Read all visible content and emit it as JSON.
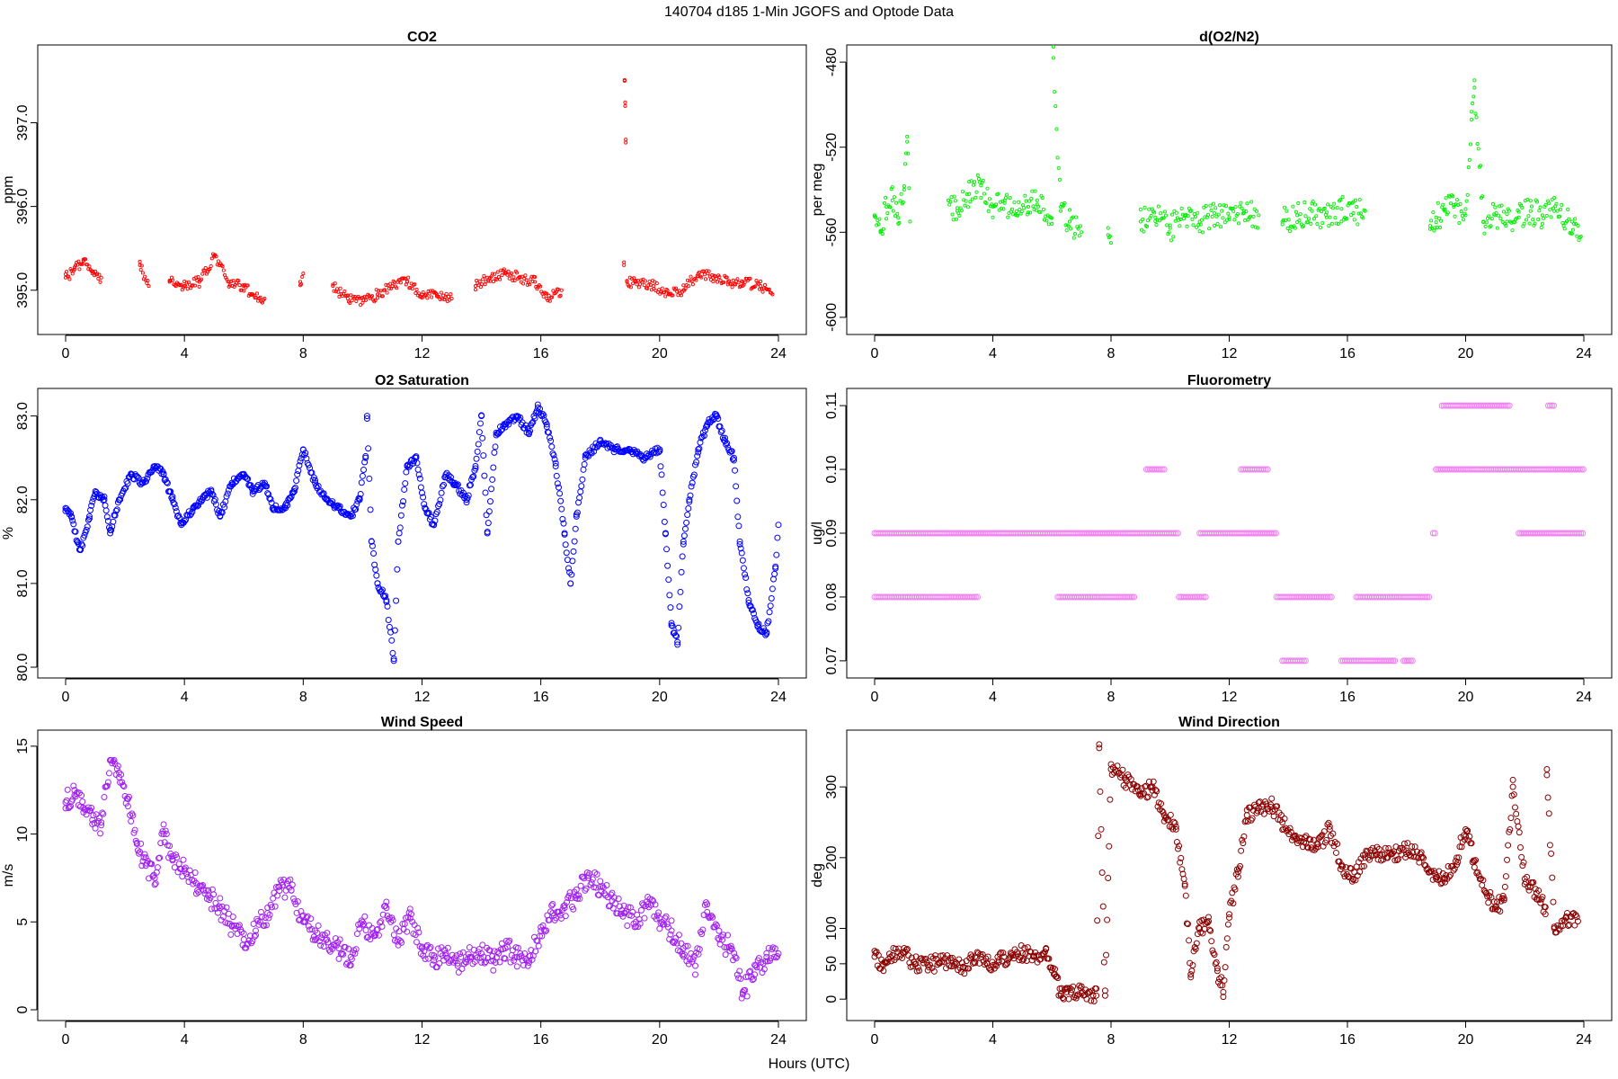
{
  "figure": {
    "title": "140704   d185   1-Min  JGOFS and Optode Data",
    "xlabel": "Hours (UTC)"
  },
  "chart_data": [
    {
      "type": "scatter",
      "title": "CO2",
      "ylabel": "ppm",
      "color": "#ff0000",
      "marker_size": "small",
      "xlim": [
        0,
        24
      ],
      "ylim": [
        394.6,
        397.8
      ],
      "xticks": [
        0,
        4,
        8,
        12,
        16,
        20,
        24
      ],
      "yticks": [
        395.0,
        396.0,
        397.0
      ],
      "ytick_labels": [
        "395.0",
        "396.0",
        "397.0"
      ],
      "series": [
        {
          "name": "CO2",
          "x": [
            0.0,
            0.3,
            0.6,
            0.9,
            1.2,
            2.5,
            2.8,
            3.5,
            4.0,
            4.5,
            5.0,
            5.5,
            6.0,
            6.3,
            6.7,
            7.9,
            8.0,
            9.0,
            9.5,
            10.0,
            10.5,
            11.0,
            11.5,
            12.0,
            12.5,
            13.0,
            13.8,
            14.3,
            14.8,
            15.3,
            15.8,
            16.2,
            16.7,
            18.8,
            18.82,
            18.84,
            18.86,
            18.9,
            19.2,
            19.8,
            20.3,
            20.8,
            21.3,
            21.8,
            22.3,
            22.8,
            23.4,
            23.8
          ],
          "y": [
            395.15,
            395.25,
            395.35,
            395.2,
            395.15,
            395.3,
            395.05,
            395.1,
            395.05,
            395.1,
            395.4,
            395.1,
            395.05,
            394.95,
            394.9,
            395.1,
            395.2,
            395.05,
            394.9,
            394.85,
            394.95,
            395.05,
            395.1,
            394.95,
            394.95,
            394.9,
            395.05,
            395.15,
            395.2,
            395.15,
            395.1,
            394.9,
            395.0,
            395.3,
            397.5,
            397.2,
            396.8,
            395.1,
            395.1,
            395.05,
            394.95,
            395.0,
            395.2,
            395.15,
            395.1,
            395.1,
            395.05,
            394.95
          ]
        }
      ]
    },
    {
      "type": "scatter",
      "title": "d(O2/N2)",
      "ylabel": "per meg",
      "color": "#00ee00",
      "marker_size": "small",
      "xlim": [
        0,
        24
      ],
      "ylim": [
        -603,
        -477
      ],
      "xticks": [
        0,
        4,
        8,
        12,
        16,
        20,
        24
      ],
      "yticks": [
        -600,
        -560,
        -520,
        -480
      ],
      "ytick_labels": [
        "-600",
        "-560",
        "-520",
        "-480"
      ],
      "series": [
        {
          "name": "d(O2/N2)",
          "x": [
            0.0,
            0.2,
            0.4,
            0.6,
            0.8,
            1.0,
            1.1,
            1.2,
            2.5,
            2.8,
            3.2,
            3.6,
            4.0,
            4.4,
            4.8,
            5.2,
            5.5,
            6.0,
            6.05,
            6.3,
            6.6,
            7.0,
            7.9,
            8.0,
            9.0,
            9.5,
            10.0,
            10.5,
            11.0,
            11.5,
            12.0,
            12.5,
            13.0,
            13.8,
            14.3,
            14.8,
            15.3,
            15.8,
            16.2,
            16.6,
            18.8,
            19.0,
            19.3,
            19.6,
            20.0,
            20.2,
            20.3,
            20.6,
            21.0,
            21.4,
            21.8,
            22.2,
            22.6,
            23.0,
            23.6,
            23.9
          ],
          "y": [
            -552,
            -560,
            -548,
            -545,
            -556,
            -540,
            -515,
            -555,
            -545,
            -550,
            -542,
            -538,
            -548,
            -545,
            -552,
            -548,
            -545,
            -556,
            -478,
            -550,
            -555,
            -560,
            -558,
            -565,
            -555,
            -553,
            -558,
            -552,
            -555,
            -551,
            -554,
            -550,
            -552,
            -555,
            -552,
            -550,
            -553,
            -549,
            -551,
            -550,
            -557,
            -553,
            -550,
            -548,
            -552,
            -507,
            -492,
            -555,
            -552,
            -555,
            -553,
            -550,
            -552,
            -550,
            -555,
            -562
          ]
        }
      ]
    },
    {
      "type": "scatter",
      "title": "O2 Saturation",
      "ylabel": "%",
      "color": "#0000ff",
      "marker_size": "large",
      "xlim": [
        0,
        24
      ],
      "ylim": [
        80,
        83.2
      ],
      "xticks": [
        0,
        4,
        8,
        12,
        16,
        20,
        24
      ],
      "yticks": [
        80.0,
        81.0,
        82.0,
        83.0
      ],
      "ytick_labels": [
        "80.0",
        "81.0",
        "82.0",
        "83.0"
      ],
      "series": [
        {
          "name": "O2 Saturation",
          "x": [
            0.0,
            0.2,
            0.4,
            0.5,
            0.8,
            1.0,
            1.3,
            1.5,
            1.8,
            2.2,
            2.6,
            3.0,
            3.3,
            3.6,
            3.9,
            4.3,
            4.6,
            4.9,
            5.2,
            5.6,
            6.0,
            6.3,
            6.7,
            7.0,
            7.4,
            7.7,
            8.0,
            8.4,
            8.8,
            9.2,
            9.6,
            9.9,
            10.1,
            10.15,
            10.3,
            10.5,
            10.8,
            11.05,
            11.2,
            11.5,
            11.8,
            12.1,
            12.4,
            12.8,
            13.1,
            13.5,
            13.8,
            14.0,
            14.2,
            14.5,
            14.8,
            15.2,
            15.6,
            15.9,
            16.2,
            16.5,
            16.8,
            17.0,
            17.2,
            17.5,
            18.0,
            18.5,
            19.0,
            19.5,
            20.0,
            20.2,
            20.4,
            20.6,
            20.8,
            21.0,
            21.3,
            21.6,
            21.9,
            22.2,
            22.5,
            22.7,
            23.0,
            23.3,
            23.6,
            23.9,
            24.0
          ],
          "y": [
            81.9,
            81.8,
            81.5,
            81.4,
            81.8,
            82.1,
            82.0,
            81.6,
            82.0,
            82.3,
            82.2,
            82.4,
            82.3,
            82.0,
            81.7,
            81.9,
            82.0,
            82.1,
            81.8,
            82.2,
            82.3,
            82.1,
            82.2,
            81.9,
            81.9,
            82.1,
            82.6,
            82.2,
            82.0,
            81.9,
            81.8,
            82.0,
            82.5,
            83.0,
            81.5,
            81.0,
            80.8,
            80.1,
            81.5,
            82.4,
            82.5,
            81.9,
            81.7,
            82.3,
            82.2,
            82.0,
            82.4,
            83.0,
            81.6,
            82.8,
            82.9,
            83.0,
            82.8,
            83.1,
            82.9,
            82.4,
            81.6,
            81.0,
            81.8,
            82.5,
            82.7,
            82.6,
            82.6,
            82.5,
            82.6,
            81.6,
            80.5,
            80.3,
            81.5,
            82.0,
            82.6,
            82.9,
            83.0,
            82.7,
            82.5,
            81.5,
            80.8,
            80.5,
            80.4,
            81.2,
            81.7
          ]
        }
      ]
    },
    {
      "type": "scatter",
      "title": "Fluorometry",
      "ylabel": "ug/l",
      "color": "#ee82ee",
      "marker_size": "large",
      "xlim": [
        0,
        24
      ],
      "ylim": [
        0.069,
        0.111
      ],
      "xticks": [
        0,
        4,
        8,
        12,
        16,
        20,
        24
      ],
      "yticks": [
        0.07,
        0.08,
        0.09,
        0.1,
        0.11
      ],
      "ytick_labels": [
        "0.07",
        "0.08",
        "0.09",
        "0.10",
        "0.11"
      ],
      "bands": [
        {
          "value": 0.09,
          "segments": [
            [
              0.0,
              10.3
            ],
            [
              11.0,
              13.6
            ],
            [
              18.9,
              19.0
            ],
            [
              21.8,
              24.0
            ]
          ]
        },
        {
          "value": 0.08,
          "segments": [
            [
              0.0,
              3.5
            ],
            [
              6.2,
              8.8
            ],
            [
              10.3,
              11.2
            ],
            [
              13.6,
              15.5
            ],
            [
              16.3,
              18.8
            ]
          ]
        },
        {
          "value": 0.1,
          "segments": [
            [
              9.2,
              9.8
            ],
            [
              12.4,
              13.3
            ],
            [
              19.0,
              24.0
            ]
          ]
        },
        {
          "value": 0.11,
          "segments": [
            [
              19.2,
              21.5
            ],
            [
              22.8,
              23.0
            ]
          ]
        },
        {
          "value": 0.07,
          "segments": [
            [
              13.8,
              14.6
            ],
            [
              15.8,
              17.6
            ],
            [
              17.9,
              18.2
            ]
          ]
        }
      ]
    },
    {
      "type": "scatter",
      "title": "Wind Speed",
      "ylabel": "m/s",
      "color": "#a020f0",
      "marker_size": "large",
      "xlim": [
        0,
        24
      ],
      "ylim": [
        0,
        15.3
      ],
      "xticks": [
        0,
        4,
        8,
        12,
        16,
        20,
        24
      ],
      "yticks": [
        0,
        5,
        10,
        15
      ],
      "ytick_labels": [
        "0",
        "5",
        "10",
        "15"
      ],
      "series": [
        {
          "name": "Wind Speed",
          "x": [
            0.0,
            0.3,
            0.6,
            0.9,
            1.2,
            1.5,
            1.8,
            2.1,
            2.4,
            2.7,
            3.0,
            3.3,
            3.6,
            4.0,
            4.4,
            4.8,
            5.2,
            5.6,
            6.0,
            6.4,
            6.8,
            7.2,
            7.6,
            8.0,
            8.4,
            8.8,
            9.2,
            9.6,
            10.0,
            10.4,
            10.8,
            11.2,
            11.6,
            12.0,
            12.4,
            12.8,
            13.2,
            13.6,
            14.0,
            14.4,
            14.8,
            15.2,
            15.6,
            16.0,
            16.4,
            16.8,
            17.2,
            17.6,
            18.0,
            18.4,
            18.8,
            19.2,
            19.6,
            20.0,
            20.4,
            20.8,
            21.2,
            21.6,
            22.0,
            22.4,
            22.8,
            23.2,
            23.6,
            24.0
          ],
          "y": [
            11.8,
            12.5,
            11.5,
            10.8,
            10.5,
            14.2,
            13.5,
            12.0,
            9.5,
            8.2,
            7.5,
            10.0,
            8.5,
            8.0,
            7.2,
            6.5,
            5.8,
            4.8,
            4.0,
            4.5,
            5.5,
            7.0,
            6.8,
            5.0,
            4.5,
            4.0,
            3.5,
            3.0,
            5.0,
            4.2,
            5.8,
            4.0,
            5.2,
            3.5,
            2.8,
            3.2,
            2.5,
            3.0,
            3.2,
            2.8,
            3.5,
            3.0,
            2.8,
            4.5,
            5.5,
            5.8,
            6.5,
            7.5,
            7.0,
            6.2,
            5.5,
            5.0,
            6.0,
            5.2,
            4.5,
            3.5,
            2.5,
            6.0,
            4.0,
            3.5,
            1.0,
            2.0,
            3.0,
            3.2
          ]
        }
      ]
    },
    {
      "type": "scatter",
      "title": "Wind Direction",
      "ylabel": "deg",
      "color": "#8b0000",
      "marker_size": "large",
      "xlim": [
        0,
        24
      ],
      "ylim": [
        -15,
        365
      ],
      "xticks": [
        0,
        4,
        8,
        12,
        16,
        20,
        24
      ],
      "yticks": [
        0,
        50,
        100,
        200,
        300
      ],
      "ytick_labels": [
        "0",
        "50",
        "100",
        "200",
        "300"
      ],
      "series": [
        {
          "name": "Wind Direction",
          "x": [
            0.0,
            0.3,
            0.6,
            1.0,
            1.4,
            1.8,
            2.2,
            2.6,
            3.0,
            3.4,
            3.8,
            4.2,
            4.6,
            5.0,
            5.4,
            5.8,
            6.1,
            6.3,
            6.5,
            7.0,
            7.5,
            7.6,
            7.8,
            8.0,
            8.5,
            9.0,
            9.4,
            9.8,
            10.2,
            10.5,
            10.7,
            11.0,
            11.3,
            11.6,
            11.8,
            12.0,
            12.3,
            12.6,
            13.0,
            13.4,
            13.8,
            14.2,
            14.6,
            15.0,
            15.4,
            15.8,
            16.2,
            16.6,
            17.0,
            17.5,
            18.0,
            18.5,
            19.0,
            19.3,
            19.7,
            20.0,
            20.3,
            20.7,
            21.0,
            21.3,
            21.6,
            22.0,
            22.4,
            22.7,
            22.75,
            23.0,
            23.4,
            23.8
          ],
          "y": [
            60,
            40,
            62,
            65,
            50,
            48,
            52,
            55,
            45,
            60,
            50,
            55,
            60,
            65,
            60,
            72,
            35,
            5,
            10,
            8,
            5,
            355,
            5,
            325,
            310,
            290,
            300,
            260,
            240,
            160,
            35,
            100,
            110,
            40,
            10,
            120,
            180,
            260,
            270,
            275,
            250,
            230,
            220,
            215,
            240,
            190,
            170,
            200,
            205,
            205,
            210,
            200,
            170,
            170,
            200,
            240,
            195,
            150,
            130,
            140,
            300,
            170,
            150,
            130,
            325,
            100,
            115,
            110
          ]
        }
      ]
    }
  ]
}
